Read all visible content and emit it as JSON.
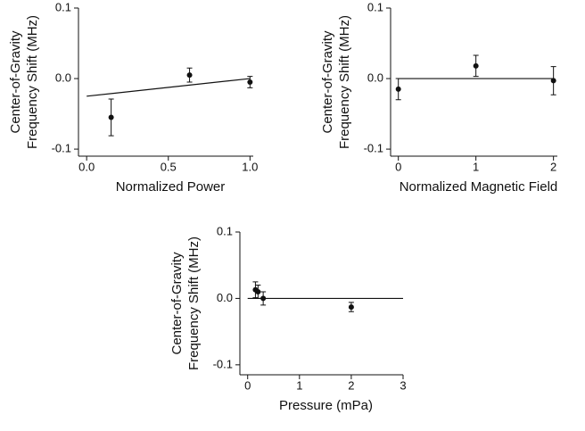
{
  "chart_data": [
    {
      "type": "scatter",
      "xlabel": "Normalized Power",
      "ylabel": [
        "Center-of-Gravity",
        "Frequency Shift (MHz)"
      ],
      "xlim": [
        -0.05,
        1.02
      ],
      "ylim": [
        -0.11,
        0.1
      ],
      "xticks": [
        {
          "value": 0,
          "label": "0.0"
        },
        0.5,
        {
          "value": 1,
          "label": "1.0"
        }
      ],
      "yticks": [
        -0.1,
        {
          "value": 0,
          "label": "0.0"
        },
        0.1
      ],
      "points": {
        "x": [
          0.15,
          0.63,
          1.0
        ],
        "values": [
          -0.055,
          0.005,
          -0.005
        ],
        "errors": [
          0.026,
          0.01,
          0.008
        ]
      },
      "fit": {
        "x": [
          0,
          1
        ],
        "values": [
          -0.025,
          0
        ]
      }
    },
    {
      "type": "scatter",
      "xlabel": "Normalized Magnetic Field",
      "ylabel": [
        "Center-of-Gravity",
        "Frequency Shift (MHz)"
      ],
      "xlim": [
        -0.1,
        2.05
      ],
      "ylim": [
        -0.11,
        0.1
      ],
      "xticks": [
        0,
        1,
        2
      ],
      "yticks": [
        -0.1,
        {
          "value": 0,
          "label": "0.0"
        },
        0.1
      ],
      "points": {
        "x": [
          0,
          1,
          2
        ],
        "values": [
          -0.015,
          0.018,
          -0.003
        ],
        "errors": [
          0.015,
          0.015,
          0.02
        ]
      },
      "fit": {
        "x": [
          0,
          2
        ],
        "values": [
          0,
          0
        ]
      }
    },
    {
      "type": "scatter",
      "xlabel": "Pressure (mPa)",
      "ylabel": [
        "Center-of-Gravity",
        "Frequency Shift (MHz)"
      ],
      "xlim": [
        -0.15,
        3
      ],
      "ylim": [
        -0.115,
        0.1
      ],
      "xticks": [
        0,
        1,
        2,
        3
      ],
      "yticks": [
        -0.1,
        {
          "value": 0,
          "label": "0.0"
        },
        0.1
      ],
      "points": {
        "x": [
          0.15,
          0.2,
          0.3,
          2.0
        ],
        "values": [
          0.013,
          0.01,
          0.0,
          -0.013
        ],
        "errors": [
          0.012,
          0.01,
          0.01,
          0.007
        ]
      },
      "fit": {
        "x": [
          0,
          3
        ],
        "values": [
          0,
          0
        ]
      }
    }
  ]
}
